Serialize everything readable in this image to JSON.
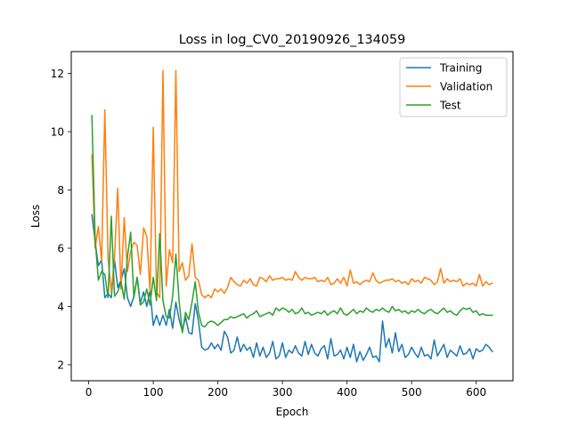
{
  "chart_data": {
    "type": "line",
    "title": "Loss in log_CV0_20190926_134059",
    "xlabel": "Epoch",
    "ylabel": "Loss",
    "xlim": [
      -27,
      657
    ],
    "ylim": [
      1.45,
      12.75
    ],
    "xticks": [
      0,
      100,
      200,
      300,
      400,
      500,
      600
    ],
    "yticks": [
      2,
      4,
      6,
      8,
      10,
      12
    ],
    "grid": false,
    "legend_position": "upper right",
    "x": [
      5,
      10,
      15,
      20,
      25,
      30,
      35,
      40,
      45,
      50,
      55,
      60,
      65,
      70,
      75,
      80,
      85,
      90,
      95,
      100,
      105,
      110,
      115,
      120,
      125,
      130,
      135,
      140,
      145,
      150,
      155,
      160,
      165,
      170,
      175,
      180,
      185,
      190,
      195,
      200,
      205,
      210,
      215,
      220,
      225,
      230,
      235,
      240,
      245,
      250,
      255,
      260,
      265,
      270,
      275,
      280,
      285,
      290,
      295,
      300,
      305,
      310,
      315,
      320,
      325,
      330,
      335,
      340,
      345,
      350,
      355,
      360,
      365,
      370,
      375,
      380,
      385,
      390,
      395,
      400,
      405,
      410,
      415,
      420,
      425,
      430,
      435,
      440,
      445,
      450,
      455,
      460,
      465,
      470,
      475,
      480,
      485,
      490,
      495,
      500,
      505,
      510,
      515,
      520,
      525,
      530,
      535,
      540,
      545,
      550,
      555,
      560,
      565,
      570,
      575,
      580,
      585,
      590,
      595,
      600,
      605,
      610,
      615,
      620,
      625
    ],
    "series": [
      {
        "name": "Training",
        "color": "#1f77b4",
        "values": [
          7.15,
          6.2,
          5.4,
          5.6,
          4.3,
          4.45,
          4.3,
          5.6,
          4.65,
          4.9,
          5.3,
          4.3,
          4.0,
          4.35,
          5.0,
          4.1,
          4.5,
          4.0,
          4.55,
          3.35,
          3.7,
          3.35,
          3.7,
          3.35,
          3.9,
          3.25,
          4.15,
          3.55,
          3.15,
          3.65,
          3.1,
          3.05,
          4.1,
          3.5,
          2.6,
          2.5,
          2.55,
          2.75,
          2.55,
          2.7,
          2.5,
          3.15,
          2.95,
          2.4,
          2.5,
          2.95,
          2.45,
          2.7,
          2.5,
          2.6,
          2.25,
          2.75,
          2.3,
          2.6,
          2.25,
          2.4,
          2.8,
          2.2,
          2.3,
          2.75,
          2.25,
          2.5,
          2.4,
          2.65,
          2.4,
          2.3,
          2.8,
          2.35,
          2.7,
          2.4,
          2.3,
          2.55,
          2.65,
          2.2,
          2.9,
          2.3,
          2.35,
          2.5,
          2.2,
          2.6,
          2.25,
          2.7,
          2.1,
          2.45,
          2.15,
          2.35,
          2.6,
          2.25,
          2.3,
          2.1,
          3.5,
          2.6,
          2.9,
          2.4,
          3.1,
          2.45,
          2.7,
          2.25,
          2.35,
          2.6,
          2.4,
          2.25,
          2.6,
          2.3,
          2.35,
          2.2,
          2.85,
          2.3,
          2.5,
          2.7,
          2.25,
          2.5,
          2.4,
          2.3,
          2.65,
          2.35,
          2.4,
          2.55,
          2.2,
          2.55,
          2.45,
          2.5,
          2.7,
          2.6,
          2.45
        ],
        "value_note": ""
      },
      {
        "name": "Validation",
        "color": "#ff7f0e",
        "values": [
          9.2,
          6.0,
          6.75,
          5.55,
          10.75,
          5.65,
          4.5,
          5.7,
          8.05,
          4.6,
          7.05,
          5.2,
          5.9,
          6.2,
          6.1,
          5.1,
          6.7,
          6.4,
          4.5,
          10.15,
          4.5,
          4.3,
          12.1,
          4.7,
          5.95,
          5.5,
          12.1,
          5.2,
          5.5,
          4.9,
          5.05,
          6.15,
          5.0,
          4.9,
          4.4,
          4.3,
          4.4,
          4.3,
          4.6,
          4.5,
          4.6,
          4.45,
          4.65,
          5.0,
          4.85,
          4.75,
          4.7,
          4.9,
          4.8,
          4.95,
          4.75,
          4.7,
          5.0,
          4.95,
          4.85,
          5.05,
          4.9,
          4.95,
          4.95,
          5.0,
          4.9,
          4.95,
          4.9,
          5.2,
          5.0,
          4.9,
          5.0,
          4.95,
          4.95,
          5.0,
          4.85,
          4.9,
          4.85,
          5.0,
          4.75,
          4.8,
          4.95,
          4.8,
          5.0,
          4.7,
          5.25,
          4.8,
          4.85,
          4.75,
          4.85,
          4.9,
          4.85,
          5.15,
          4.9,
          4.8,
          4.85,
          4.9,
          4.9,
          4.95,
          4.85,
          4.9,
          4.8,
          4.85,
          4.75,
          4.95,
          4.85,
          4.9,
          4.8,
          5.0,
          4.95,
          4.9,
          4.75,
          4.85,
          5.3,
          4.8,
          4.95,
          4.85,
          4.9,
          4.85,
          4.95,
          4.7,
          4.8,
          4.75,
          4.8,
          4.7,
          5.1,
          4.7,
          4.85,
          4.75,
          4.8
        ]
      },
      {
        "name": "Test",
        "color": "#2ca02c",
        "values": [
          10.55,
          6.3,
          4.9,
          5.2,
          5.1,
          4.3,
          7.1,
          4.35,
          4.5,
          4.85,
          4.25,
          5.7,
          6.55,
          4.3,
          5.0,
          4.05,
          4.15,
          4.6,
          4.05,
          5.0,
          4.2,
          6.5,
          4.2,
          3.65,
          3.6,
          4.35,
          5.8,
          4.2,
          3.1,
          3.8,
          3.55,
          4.15,
          4.85,
          3.8,
          3.35,
          3.3,
          3.45,
          3.5,
          3.45,
          3.35,
          3.45,
          3.55,
          3.55,
          3.65,
          3.6,
          3.65,
          3.7,
          3.75,
          3.6,
          3.7,
          3.75,
          3.85,
          3.65,
          3.7,
          3.75,
          3.8,
          3.7,
          3.95,
          3.85,
          3.95,
          3.9,
          3.8,
          3.9,
          3.75,
          3.8,
          3.95,
          3.75,
          3.8,
          3.7,
          3.75,
          3.8,
          3.75,
          3.85,
          3.7,
          3.8,
          3.85,
          3.75,
          3.95,
          3.75,
          3.7,
          3.8,
          3.9,
          3.75,
          3.85,
          3.8,
          3.95,
          3.85,
          3.8,
          3.9,
          3.85,
          3.95,
          3.85,
          3.8,
          4.0,
          3.85,
          3.9,
          3.8,
          3.85,
          3.75,
          3.85,
          3.8,
          3.9,
          3.8,
          3.75,
          3.85,
          3.9,
          3.8,
          3.75,
          3.85,
          3.95,
          3.8,
          3.85,
          3.75,
          3.7,
          3.85,
          3.95,
          3.9,
          3.95,
          3.8,
          3.85,
          3.7,
          3.75,
          3.7,
          3.7,
          3.7
        ]
      }
    ]
  }
}
